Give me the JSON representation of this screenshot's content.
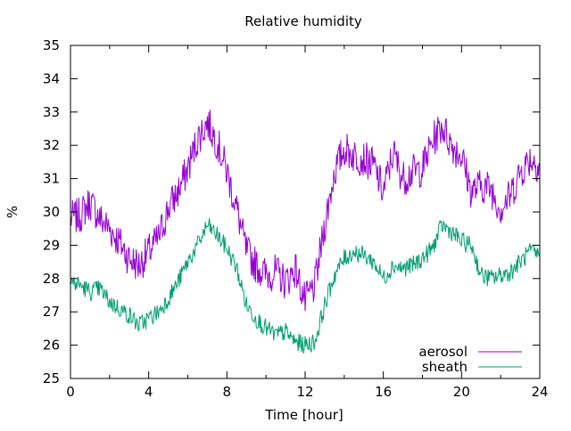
{
  "chart_data": {
    "type": "line",
    "title": "Relative humidity",
    "xlabel": "Time [hour]",
    "ylabel": "%",
    "xlim": [
      0,
      24
    ],
    "ylim": [
      25,
      35
    ],
    "xticks": [
      0,
      4,
      8,
      12,
      16,
      20,
      24
    ],
    "yticks": [
      25,
      26,
      27,
      28,
      29,
      30,
      31,
      32,
      33,
      34,
      35
    ],
    "grid": false,
    "legend_position": "bottom-right",
    "series": [
      {
        "name": "aerosol",
        "color": "#9400d3",
        "x": [
          0,
          0.5,
          1,
          1.5,
          2,
          2.5,
          3,
          3.5,
          4,
          4.5,
          5,
          5.5,
          6,
          6.5,
          7,
          7.5,
          8,
          8.5,
          9,
          9.5,
          10,
          10.5,
          11,
          11.5,
          12,
          12.5,
          13,
          13.5,
          14,
          14.5,
          15,
          15.5,
          16,
          16.5,
          17,
          17.5,
          18,
          18.5,
          19,
          19.5,
          20,
          20.5,
          21,
          21.5,
          22,
          22.5,
          23,
          23.5,
          24
        ],
        "y": [
          29.8,
          29.9,
          30.3,
          29.8,
          29.5,
          29.1,
          28.6,
          28.4,
          28.8,
          29.2,
          30.1,
          30.6,
          31.3,
          32.2,
          32.7,
          32.1,
          31.2,
          30.1,
          28.8,
          28.4,
          28.1,
          28.2,
          27.9,
          28.3,
          27.3,
          27.8,
          29.6,
          31.2,
          31.9,
          31.7,
          31.6,
          31.4,
          30.6,
          31.8,
          31.0,
          31.2,
          31.3,
          32.1,
          32.6,
          32.0,
          31.7,
          30.6,
          30.8,
          30.7,
          30.1,
          30.5,
          31.2,
          31.6,
          31.4
        ]
      },
      {
        "name": "sheath",
        "color": "#009e73",
        "x": [
          0,
          0.5,
          1,
          1.5,
          2,
          2.5,
          3,
          3.5,
          4,
          4.5,
          5,
          5.5,
          6,
          6.5,
          7,
          7.5,
          8,
          8.5,
          9,
          9.5,
          10,
          10.5,
          11,
          11.5,
          12,
          12.5,
          13,
          13.5,
          14,
          14.5,
          15,
          15.5,
          16,
          16.5,
          17,
          17.5,
          18,
          18.5,
          19,
          19.5,
          20,
          20.5,
          21,
          21.5,
          22,
          22.5,
          23,
          23.5,
          24
        ],
        "y": [
          27.9,
          27.8,
          27.6,
          27.7,
          27.3,
          27.1,
          26.9,
          26.6,
          26.8,
          27.0,
          27.4,
          27.9,
          28.5,
          29.0,
          29.6,
          29.3,
          28.9,
          28.3,
          27.2,
          26.8,
          26.5,
          26.3,
          26.4,
          26.1,
          26.0,
          26.1,
          27.2,
          28.1,
          28.6,
          28.8,
          28.7,
          28.5,
          28.0,
          28.4,
          28.3,
          28.4,
          28.6,
          28.9,
          29.6,
          29.4,
          29.1,
          29.0,
          28.1,
          28.0,
          28.1,
          28.2,
          28.5,
          28.8,
          28.7
        ]
      }
    ]
  }
}
